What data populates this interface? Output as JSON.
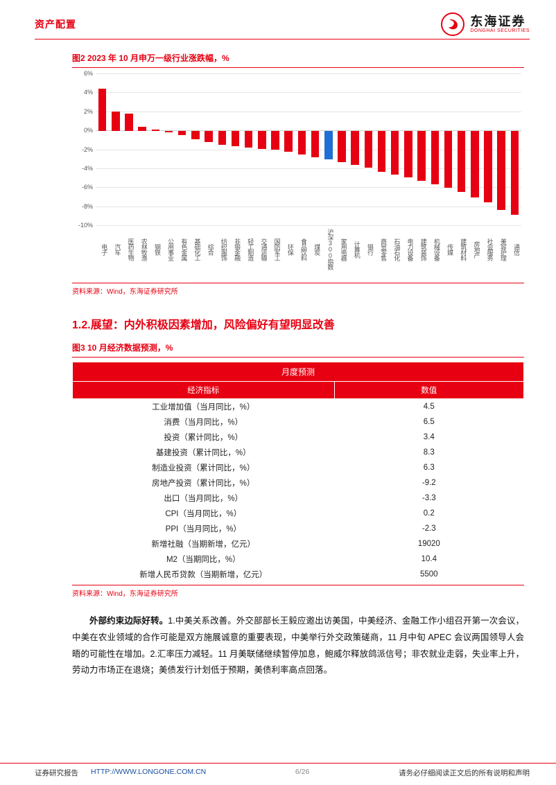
{
  "header": {
    "category": "资产配置",
    "brand_cn": "东海证券",
    "brand_en": "DONGHAI SECURITIES"
  },
  "chart": {
    "title": "图2  2023 年 10 月申万一级行业涨跌幅，%",
    "source": "资料来源：Wind，东海证券研究所",
    "type": "bar",
    "ylim": [
      -10,
      6
    ],
    "ytick_step": 2,
    "yticks": [
      6,
      4,
      2,
      0,
      -2,
      -4,
      -6,
      -8,
      -10
    ],
    "grid_color": "#e5e5e5",
    "axis_color": "#d0d0d0",
    "label_color": "#555555",
    "label_fontsize": 9,
    "bar_default_color": "#e60012",
    "bar_highlight_color": "#1f6fd4",
    "categories": [
      "电子",
      "汽车",
      "医药生物",
      "农林牧渔",
      "钢铁",
      "公用事业",
      "有色金属",
      "基础化工",
      "综合",
      "纺织服饰",
      "非银金融",
      "轻工制造",
      "交通运输",
      "国防军工",
      "环保",
      "食品饮料",
      "煤炭",
      "沪深300指数",
      "家用电器",
      "计算机",
      "银行",
      "商贸零售",
      "石油石化",
      "电力设备",
      "建筑装饰",
      "机械设备",
      "传媒",
      "建筑材料",
      "房地产",
      "社会服务",
      "美容护理",
      "通信"
    ],
    "values": [
      4.4,
      2.0,
      1.8,
      0.4,
      0.1,
      -0.2,
      -0.5,
      -0.9,
      -1.2,
      -1.5,
      -1.6,
      -1.8,
      -1.9,
      -2.0,
      -2.2,
      -2.5,
      -2.8,
      -3.0,
      -3.3,
      -3.6,
      -3.9,
      -4.3,
      -4.6,
      -4.9,
      -5.3,
      -5.6,
      -6.0,
      -6.4,
      -7.0,
      -7.5,
      -8.3,
      -8.8
    ],
    "highlight_index": 17
  },
  "section": {
    "heading": "1.2.展望：内外积极因素增加，风险偏好有望明显改善"
  },
  "table": {
    "title": "图3  10 月经济数据预测，%",
    "source": "资料来源：Wind，东海证券研究所",
    "header_merged": "月度预测",
    "columns": [
      "经济指标",
      "数值"
    ],
    "header_bg": "#e60012",
    "header_fg": "#ffffff",
    "rows": [
      [
        "工业增加值（当月同比，%）",
        "4.5"
      ],
      [
        "消费（当月同比，%）",
        "6.5"
      ],
      [
        "投资（累计同比，%）",
        "3.4"
      ],
      [
        "基建投资（累计同比，%）",
        "8.3"
      ],
      [
        "制造业投资（累计同比，%）",
        "6.3"
      ],
      [
        "房地产投资（累计同比，%）",
        "-9.2"
      ],
      [
        "出口（当月同比，%）",
        "-3.3"
      ],
      [
        "CPI（当月同比，%）",
        "0.2"
      ],
      [
        "PPI（当月同比，%）",
        "-2.3"
      ],
      [
        "新增社融（当期新增，亿元）",
        "19020"
      ],
      [
        "M2（当期同比，%）",
        "10.4"
      ],
      [
        "新增人民币贷款（当期新增，亿元）",
        "5500"
      ]
    ]
  },
  "paragraph": {
    "lead": "外部约束边际好转。",
    "body": "1.中美关系改善。外交部部长王毅应邀出访美国，中美经济、金融工作小组召开第一次会议，中美在农业领域的合作可能是双方施展诚意的重要表现，中美举行外交政策磋商，11 月中旬 APEC 会议两国领导人会晤的可能性在增加。2.汇率压力减轻。11 月美联储继续暂停加息，鲍威尔释放鸽派信号；非农就业走弱，失业率上升，劳动力市场正在退烧；美债发行计划低于预期，美债利率高点回落。"
  },
  "footer": {
    "left_label": "证券研究报告",
    "link": "HTTP://WWW.LONGONE.COM.CN",
    "page": "6/26",
    "right": "请务必仔细阅读正文后的所有说明和声明"
  }
}
